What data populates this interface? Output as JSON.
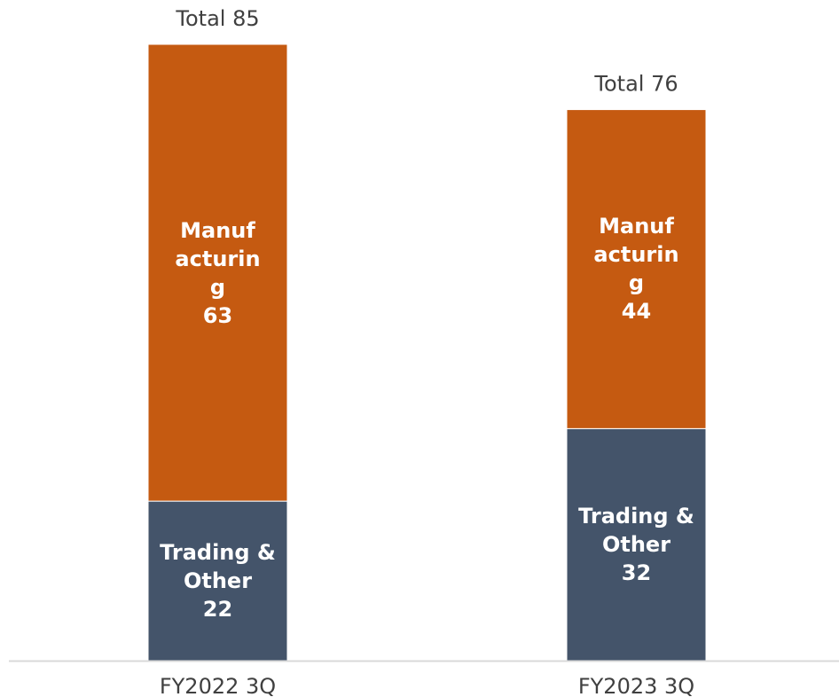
{
  "chart_data": {
    "type": "stacked_bar",
    "categories": [
      "FY2022 3Q",
      "FY2023 3Q"
    ],
    "series": [
      {
        "name": "Trading & Other",
        "color": "#44546a",
        "values": [
          22,
          32
        ]
      },
      {
        "name": "Manufacturing",
        "color": "#c55a11",
        "values": [
          63,
          44
        ]
      }
    ],
    "total_labels": [
      "Total 85",
      "Total 76"
    ],
    "ylim": [
      0,
      85
    ]
  }
}
